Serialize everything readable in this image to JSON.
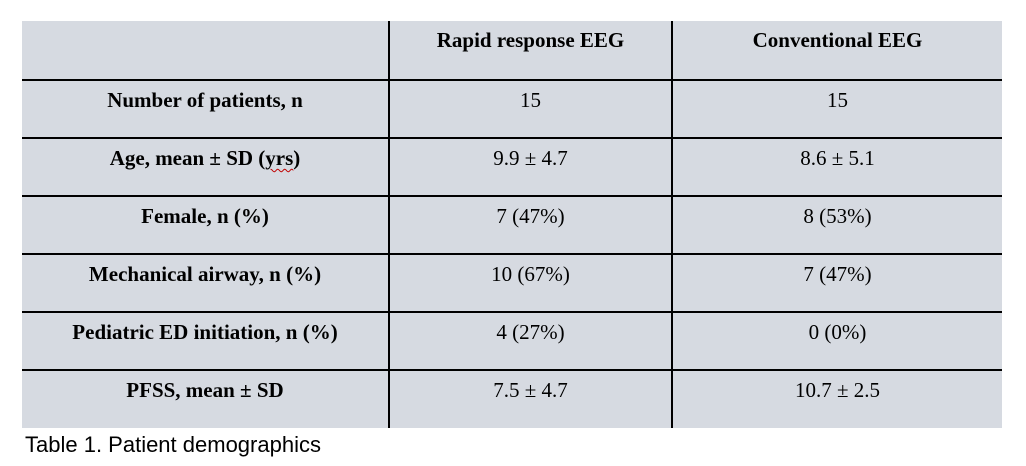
{
  "table": {
    "columns": [
      "",
      "Rapid response EEG",
      "Conventional EEG"
    ],
    "rows": [
      {
        "label": "Number of patients, n",
        "rapid": "15",
        "conventional": "15"
      },
      {
        "label_prefix": "Age, mean ± SD (",
        "label_word_misspelled": "yrs",
        "label_suffix": ")",
        "rapid": "9.9 ± 4.7",
        "conventional": "8.6 ± 5.1"
      },
      {
        "label": "Female, n (%)",
        "rapid": "7 (47%)",
        "conventional": "8 (53%)"
      },
      {
        "label": "Mechanical airway, n (%)",
        "rapid": "10 (67%)",
        "conventional": "7 (47%)"
      },
      {
        "label": "Pediatric ED initiation, n (%)",
        "rapid": "4 (27%)",
        "conventional": "0 (0%)"
      },
      {
        "label": "PFSS, mean ± SD",
        "rapid": "7.5 ± 4.7",
        "conventional": "10.7 ± 2.5"
      }
    ],
    "caption": "Table 1. Patient demographics"
  },
  "colors": {
    "cell_bg": "#d6dae1",
    "border_color": "#000000",
    "spellcheck": "#c00000",
    "text_color": "#000000"
  }
}
